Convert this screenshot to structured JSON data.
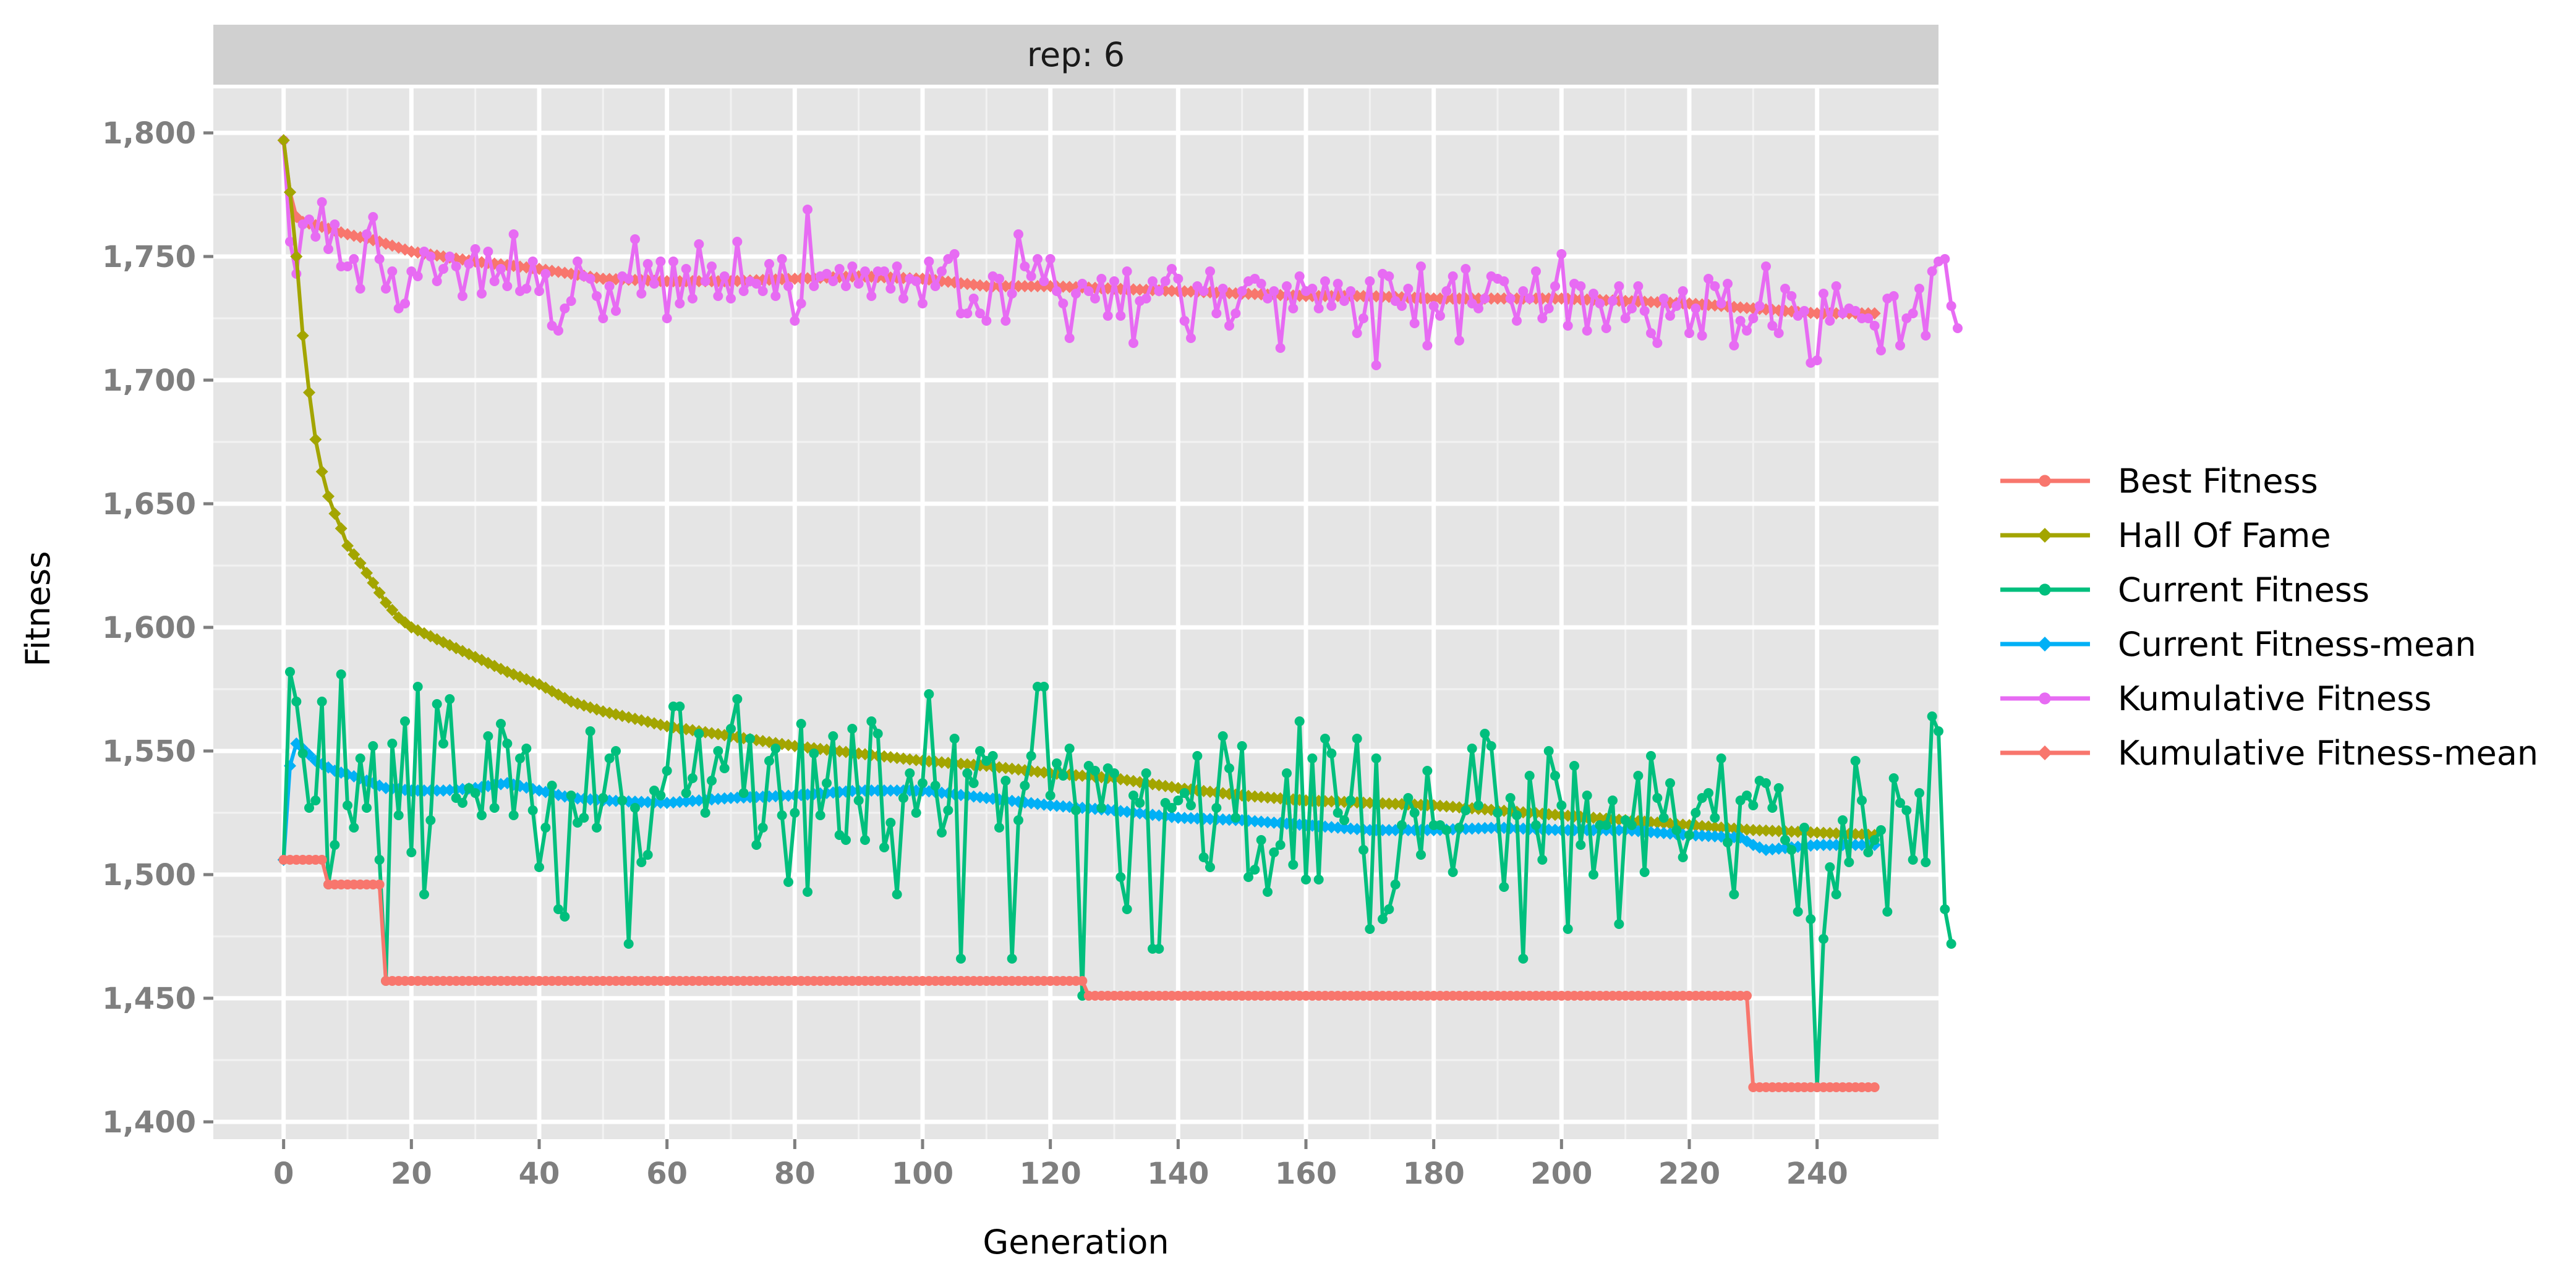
{
  "chart_data": {
    "type": "line",
    "facet_label": "rep: 6",
    "xlabel": "Generation",
    "ylabel": "Fitness",
    "xlim": [
      -11,
      259
    ],
    "ylim": [
      1393,
      1818
    ],
    "x_ticks": [
      0,
      20,
      40,
      60,
      80,
      100,
      120,
      140,
      160,
      180,
      200,
      220,
      240
    ],
    "x_tick_labels": [
      "0",
      "20",
      "40",
      "60",
      "80",
      "100",
      "120",
      "140",
      "160",
      "180",
      "200",
      "220",
      "240"
    ],
    "y_ticks": [
      1400,
      1450,
      1500,
      1550,
      1600,
      1650,
      1700,
      1750,
      1800
    ],
    "y_tick_labels": [
      "1,400",
      "1,450",
      "1,500",
      "1,550",
      "1,600",
      "1,650",
      "1,700",
      "1,750",
      "1,800"
    ],
    "grid": true,
    "legend_position": "right",
    "series": [
      {
        "name": "Best Fitness",
        "color": "#F8766D",
        "marker": "circle",
        "points": [
          [
            0,
            1506
          ],
          [
            6,
            1506
          ],
          [
            7,
            1496
          ],
          [
            15,
            1496
          ],
          [
            16,
            1457
          ],
          [
            125,
            1457
          ],
          [
            126,
            1451
          ],
          [
            229,
            1451
          ],
          [
            230,
            1414
          ],
          [
            249,
            1414
          ]
        ]
      },
      {
        "name": "Hall Of Fame",
        "color": "#A3A500",
        "marker": "diamond",
        "points": [
          [
            0,
            1797
          ],
          [
            1,
            1776
          ],
          [
            2,
            1750
          ],
          [
            3,
            1718
          ],
          [
            4,
            1695
          ],
          [
            5,
            1676
          ],
          [
            6,
            1663
          ],
          [
            7,
            1653
          ],
          [
            8,
            1646
          ],
          [
            9,
            1640
          ],
          [
            10,
            1633
          ],
          [
            12,
            1626
          ],
          [
            14,
            1618
          ],
          [
            16,
            1610
          ],
          [
            18,
            1604
          ],
          [
            20,
            1600
          ],
          [
            25,
            1594
          ],
          [
            30,
            1588
          ],
          [
            35,
            1582
          ],
          [
            40,
            1577
          ],
          [
            45,
            1570
          ],
          [
            50,
            1566
          ],
          [
            55,
            1563
          ],
          [
            60,
            1560
          ],
          [
            70,
            1556
          ],
          [
            80,
            1552
          ],
          [
            90,
            1549
          ],
          [
            100,
            1546
          ],
          [
            110,
            1544
          ],
          [
            120,
            1541
          ],
          [
            130,
            1539
          ],
          [
            140,
            1535
          ],
          [
            150,
            1532
          ],
          [
            160,
            1530
          ],
          [
            170,
            1529
          ],
          [
            180,
            1528
          ],
          [
            190,
            1526
          ],
          [
            200,
            1524
          ],
          [
            210,
            1522
          ],
          [
            220,
            1520
          ],
          [
            230,
            1518
          ],
          [
            240,
            1517
          ],
          [
            249,
            1516
          ]
        ]
      },
      {
        "name": "Current Fitness",
        "color": "#00BF7D",
        "marker": "circle",
        "values": [
          1506,
          1582,
          1570,
          1549,
          1527,
          1530,
          1570,
          1496,
          1512,
          1581,
          1528,
          1519,
          1547,
          1527,
          1552,
          1506,
          1457,
          1553,
          1524,
          1562,
          1509,
          1576,
          1492,
          1522,
          1569,
          1553,
          1571,
          1531,
          1529,
          1535,
          1533,
          1524,
          1556,
          1527,
          1561,
          1553,
          1524,
          1547,
          1551,
          1526,
          1503,
          1519,
          1536,
          1486,
          1483,
          1532,
          1521,
          1523,
          1558,
          1519,
          1531,
          1547,
          1550,
          1530,
          1472,
          1527,
          1505,
          1508,
          1534,
          1532,
          1542,
          1568,
          1568,
          1533,
          1539,
          1557,
          1525,
          1538,
          1550,
          1543,
          1559,
          1571,
          1533,
          1555,
          1512,
          1519,
          1546,
          1551,
          1524,
          1497,
          1525,
          1561,
          1493,
          1549,
          1524,
          1537,
          1556,
          1516,
          1514,
          1559,
          1530,
          1514,
          1562,
          1557,
          1511,
          1521,
          1492,
          1531,
          1541,
          1525,
          1537,
          1573,
          1536,
          1517,
          1526,
          1555,
          1466,
          1541,
          1537,
          1550,
          1546,
          1548,
          1519,
          1538,
          1466,
          1522,
          1536,
          1548,
          1576,
          1576,
          1532,
          1545,
          1540,
          1551,
          1526,
          1451,
          1544,
          1542,
          1527,
          1543,
          1541,
          1499,
          1486,
          1532,
          1529,
          1541,
          1470,
          1470,
          1529,
          1527,
          1530,
          1533,
          1528,
          1548,
          1507,
          1503,
          1527,
          1556,
          1543,
          1523,
          1552,
          1499,
          1502,
          1514,
          1493,
          1509,
          1512,
          1541,
          1504,
          1562,
          1498,
          1547,
          1498,
          1555,
          1549,
          1525,
          1522,
          1530,
          1555,
          1510,
          1478,
          1547,
          1482,
          1486,
          1496,
          1520,
          1531,
          1525,
          1508,
          1542,
          1520,
          1520,
          1518,
          1501,
          1519,
          1526,
          1551,
          1528,
          1557,
          1552,
          1525,
          1495,
          1531,
          1524,
          1466,
          1540,
          1520,
          1506,
          1550,
          1540,
          1528,
          1478,
          1544,
          1512,
          1532,
          1500,
          1520,
          1520,
          1530,
          1480,
          1522,
          1520,
          1540,
          1501,
          1548,
          1531,
          1523,
          1537,
          1518,
          1507,
          1516,
          1525,
          1531,
          1533,
          1523,
          1547,
          1513,
          1492,
          1530,
          1532,
          1528,
          1538,
          1537,
          1527,
          1535,
          1514,
          1510,
          1485,
          1519,
          1482,
          1414,
          1474,
          1503,
          1492,
          1522,
          1505,
          1546,
          1530,
          1509,
          1514,
          1518,
          1485,
          1539,
          1529,
          1526,
          1506,
          1533,
          1505,
          1564,
          1558,
          1486,
          1472
        ]
      },
      {
        "name": "Current Fitness-mean",
        "color": "#00B0F6",
        "marker": "diamond",
        "points": [
          [
            0,
            1506
          ],
          [
            1,
            1544
          ],
          [
            2,
            1553
          ],
          [
            3,
            1551
          ],
          [
            5,
            1546
          ],
          [
            8,
            1542
          ],
          [
            12,
            1539
          ],
          [
            16,
            1535
          ],
          [
            20,
            1534
          ],
          [
            25,
            1534
          ],
          [
            30,
            1535
          ],
          [
            35,
            1537
          ],
          [
            40,
            1534
          ],
          [
            45,
            1531
          ],
          [
            50,
            1530
          ],
          [
            60,
            1529
          ],
          [
            70,
            1531
          ],
          [
            80,
            1532
          ],
          [
            90,
            1534
          ],
          [
            100,
            1534
          ],
          [
            110,
            1531
          ],
          [
            120,
            1528
          ],
          [
            130,
            1526
          ],
          [
            140,
            1523
          ],
          [
            150,
            1522
          ],
          [
            160,
            1520
          ],
          [
            170,
            1518
          ],
          [
            180,
            1518
          ],
          [
            190,
            1519
          ],
          [
            200,
            1518
          ],
          [
            210,
            1518
          ],
          [
            220,
            1516
          ],
          [
            228,
            1515
          ],
          [
            230,
            1512
          ],
          [
            232,
            1510
          ],
          [
            240,
            1512
          ],
          [
            249,
            1512
          ]
        ]
      },
      {
        "name": "Kumulative Fitness",
        "color": "#E76BF3",
        "marker": "circle",
        "values": [
          1797,
          1756,
          1743,
          1763,
          1765,
          1758,
          1772,
          1753,
          1763,
          1746,
          1746,
          1749,
          1737,
          1759,
          1766,
          1749,
          1737,
          1744,
          1729,
          1731,
          1744,
          1742,
          1752,
          1750,
          1740,
          1745,
          1750,
          1746,
          1734,
          1747,
          1753,
          1735,
          1752,
          1740,
          1745,
          1738,
          1759,
          1736,
          1737,
          1748,
          1736,
          1743,
          1722,
          1720,
          1729,
          1732,
          1748,
          1742,
          1741,
          1734,
          1725,
          1738,
          1728,
          1742,
          1741,
          1757,
          1735,
          1747,
          1739,
          1748,
          1725,
          1748,
          1731,
          1745,
          1733,
          1755,
          1740,
          1746,
          1734,
          1742,
          1733,
          1756,
          1736,
          1740,
          1739,
          1736,
          1747,
          1734,
          1749,
          1738,
          1724,
          1731,
          1769,
          1738,
          1742,
          1743,
          1740,
          1745,
          1738,
          1746,
          1739,
          1744,
          1734,
          1744,
          1744,
          1737,
          1746,
          1733,
          1741,
          1740,
          1731,
          1748,
          1738,
          1744,
          1749,
          1751,
          1727,
          1727,
          1733,
          1727,
          1724,
          1742,
          1741,
          1724,
          1735,
          1759,
          1746,
          1742,
          1749,
          1740,
          1749,
          1736,
          1731,
          1717,
          1735,
          1739,
          1736,
          1733,
          1741,
          1726,
          1740,
          1726,
          1744,
          1715,
          1732,
          1733,
          1740,
          1736,
          1740,
          1745,
          1741,
          1724,
          1717,
          1738,
          1736,
          1744,
          1727,
          1737,
          1722,
          1727,
          1736,
          1740,
          1741,
          1739,
          1733,
          1736,
          1713,
          1738,
          1729,
          1742,
          1736,
          1737,
          1729,
          1740,
          1730,
          1739,
          1732,
          1736,
          1719,
          1725,
          1740,
          1706,
          1743,
          1742,
          1732,
          1730,
          1737,
          1723,
          1746,
          1714,
          1730,
          1726,
          1736,
          1742,
          1716,
          1745,
          1731,
          1729,
          1733,
          1742,
          1741,
          1740,
          1733,
          1724,
          1736,
          1733,
          1744,
          1725,
          1729,
          1738,
          1751,
          1722,
          1739,
          1738,
          1720,
          1735,
          1731,
          1721,
          1732,
          1738,
          1725,
          1729,
          1738,
          1728,
          1719,
          1715,
          1733,
          1726,
          1730,
          1736,
          1719,
          1729,
          1718,
          1741,
          1738,
          1731,
          1739,
          1714,
          1724,
          1720,
          1725,
          1730,
          1746,
          1722,
          1719,
          1737,
          1734,
          1726,
          1728,
          1707,
          1708,
          1735,
          1724,
          1738,
          1727,
          1729,
          1728,
          1725,
          1725,
          1722,
          1712,
          1733,
          1734,
          1714,
          1725,
          1727,
          1737,
          1718,
          1744,
          1748,
          1749,
          1730,
          1721
        ]
      },
      {
        "name": "Kumulative Fitness-mean",
        "color": "#F8766D",
        "marker": "diamond",
        "points": [
          [
            0,
            1797
          ],
          [
            1,
            1776
          ],
          [
            2,
            1766
          ],
          [
            3,
            1764
          ],
          [
            6,
            1762
          ],
          [
            10,
            1759
          ],
          [
            15,
            1756
          ],
          [
            20,
            1752
          ],
          [
            25,
            1750
          ],
          [
            30,
            1748
          ],
          [
            40,
            1745
          ],
          [
            45,
            1743
          ],
          [
            50,
            1741
          ],
          [
            60,
            1740
          ],
          [
            70,
            1740
          ],
          [
            80,
            1741
          ],
          [
            90,
            1742
          ],
          [
            100,
            1741
          ],
          [
            110,
            1738
          ],
          [
            120,
            1738
          ],
          [
            130,
            1737
          ],
          [
            140,
            1736
          ],
          [
            150,
            1735
          ],
          [
            160,
            1734
          ],
          [
            170,
            1734
          ],
          [
            180,
            1733
          ],
          [
            190,
            1733
          ],
          [
            200,
            1733
          ],
          [
            210,
            1732
          ],
          [
            220,
            1731
          ],
          [
            230,
            1729
          ],
          [
            240,
            1727
          ],
          [
            249,
            1727
          ]
        ]
      }
    ]
  }
}
